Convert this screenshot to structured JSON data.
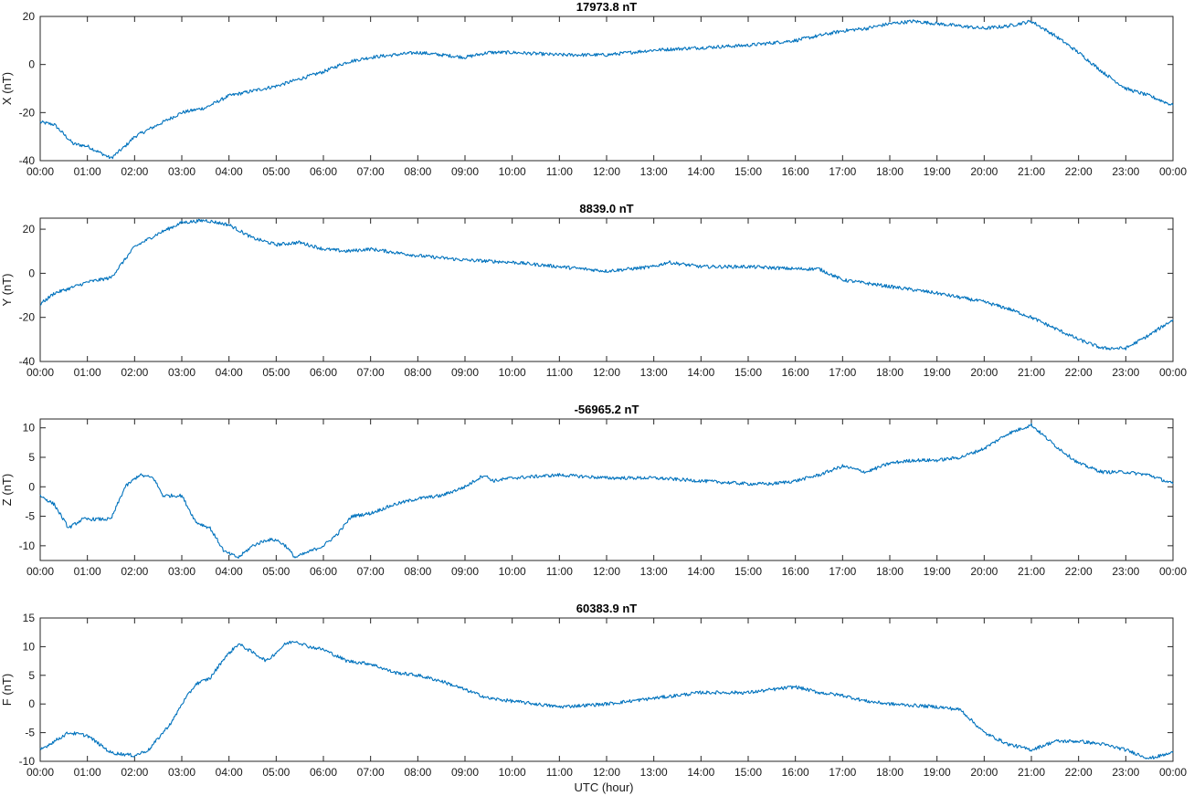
{
  "figure": {
    "xlabel": "UTC (hour)",
    "line_color": "#0072BD"
  },
  "chart_data": [
    {
      "type": "line",
      "title": "17973.8 nT",
      "ylabel": "X (nT)",
      "xlabel": "",
      "xlim": [
        0,
        24
      ],
      "ylim": [
        -40,
        20
      ],
      "xticks": [
        "00:00",
        "01:00",
        "02:00",
        "03:00",
        "04:00",
        "05:00",
        "06:00",
        "07:00",
        "08:00",
        "09:00",
        "10:00",
        "11:00",
        "12:00",
        "13:00",
        "14:00",
        "15:00",
        "16:00",
        "17:00",
        "18:00",
        "19:00",
        "20:00",
        "21:00",
        "22:00",
        "23:00",
        "00:00"
      ],
      "yticks": [
        -40,
        -20,
        0,
        20
      ],
      "grid": false,
      "series": [
        {
          "x": [
            0,
            0.3,
            0.5,
            0.7,
            1.0,
            1.2,
            1.5,
            1.8,
            2.0,
            2.5,
            3.0,
            3.5,
            4.0,
            4.5,
            5.0,
            5.5,
            6.0,
            6.5,
            7.0,
            7.5,
            8.0,
            8.5,
            9.0,
            9.5,
            10.0,
            11.0,
            12.0,
            13.0,
            14.0,
            15.0,
            16.0,
            16.5,
            17.0,
            17.5,
            18.0,
            18.5,
            19.0,
            19.5,
            20.0,
            20.5,
            21.0,
            21.5,
            22.0,
            22.5,
            23.0,
            23.5,
            24.0
          ],
          "values": [
            -24,
            -25,
            -29,
            -33,
            -34,
            -36,
            -39,
            -34,
            -30,
            -25,
            -20,
            -18,
            -13,
            -11,
            -9,
            -6,
            -3,
            1,
            3,
            4,
            5,
            4,
            3,
            5,
            5,
            4,
            4,
            6,
            7,
            8,
            10,
            12,
            14,
            15,
            17,
            18,
            17,
            16,
            15,
            16,
            18,
            12,
            5,
            -3,
            -10,
            -13,
            -17
          ]
        }
      ]
    },
    {
      "type": "line",
      "title": "8839.0 nT",
      "ylabel": "Y (nT)",
      "xlabel": "",
      "xlim": [
        0,
        24
      ],
      "ylim": [
        -40,
        25
      ],
      "xticks": [
        "00:00",
        "01:00",
        "02:00",
        "03:00",
        "04:00",
        "05:00",
        "06:00",
        "07:00",
        "08:00",
        "09:00",
        "10:00",
        "11:00",
        "12:00",
        "13:00",
        "14:00",
        "15:00",
        "16:00",
        "17:00",
        "18:00",
        "19:00",
        "20:00",
        "21:00",
        "22:00",
        "23:00",
        "00:00"
      ],
      "yticks": [
        -40,
        -20,
        0,
        20
      ],
      "grid": false,
      "series": [
        {
          "x": [
            0,
            0.3,
            0.6,
            1.0,
            1.5,
            2.0,
            2.5,
            3.0,
            3.5,
            4.0,
            4.5,
            5.0,
            5.5,
            6.0,
            6.5,
            7.0,
            8.0,
            9.0,
            10.0,
            11.0,
            12.0,
            13.0,
            13.3,
            14.0,
            15.0,
            16.0,
            16.5,
            17.0,
            18.0,
            19.0,
            19.5,
            20.0,
            20.5,
            21.0,
            21.5,
            22.0,
            22.5,
            23.0,
            23.5,
            24.0
          ],
          "values": [
            -14,
            -9,
            -7,
            -4,
            -2,
            12,
            18,
            23,
            24,
            22,
            16,
            13,
            14,
            11,
            10,
            11,
            8,
            6,
            5,
            3,
            1,
            3,
            5,
            3,
            3,
            2,
            2,
            -3,
            -6,
            -9,
            -11,
            -13,
            -16,
            -20,
            -25,
            -30,
            -34,
            -34,
            -28,
            -21
          ]
        }
      ]
    },
    {
      "type": "line",
      "title": "-56965.2 nT",
      "ylabel": "Z (nT)",
      "xlabel": "",
      "xlim": [
        0,
        24
      ],
      "ylim": [
        -12.5,
        11.5
      ],
      "xticks": [
        "00:00",
        "01:00",
        "02:00",
        "03:00",
        "04:00",
        "05:00",
        "06:00",
        "07:00",
        "08:00",
        "09:00",
        "10:00",
        "11:00",
        "12:00",
        "13:00",
        "14:00",
        "15:00",
        "16:00",
        "17:00",
        "18:00",
        "19:00",
        "20:00",
        "21:00",
        "22:00",
        "23:00",
        "00:00"
      ],
      "yticks": [
        -10,
        -5,
        0,
        5,
        10
      ],
      "grid": false,
      "series": [
        {
          "x": [
            0,
            0.3,
            0.6,
            0.9,
            1.2,
            1.5,
            1.8,
            2.1,
            2.4,
            2.6,
            2.8,
            3.0,
            3.3,
            3.6,
            3.9,
            4.2,
            4.5,
            4.8,
            5.0,
            5.2,
            5.4,
            5.7,
            6.0,
            6.3,
            6.6,
            7.0,
            7.5,
            8.0,
            8.5,
            9.0,
            9.4,
            9.6,
            10.0,
            11.0,
            12.0,
            12.5,
            13.0,
            14.0,
            15.0,
            15.5,
            16.0,
            16.5,
            17.0,
            17.5,
            18.0,
            18.5,
            19.0,
            19.5,
            20.0,
            20.5,
            21.0,
            21.5,
            22.0,
            22.5,
            23.0,
            23.5,
            24.0
          ],
          "values": [
            -1.5,
            -3,
            -7,
            -5.5,
            -5.5,
            -5.5,
            0,
            2,
            1.5,
            -1.5,
            -1.5,
            -1.5,
            -6,
            -7,
            -11,
            -12,
            -10,
            -9,
            -9,
            -10,
            -12,
            -11,
            -10,
            -8,
            -5,
            -4.5,
            -3,
            -2,
            -1.5,
            0,
            2,
            1,
            1.5,
            2,
            1.5,
            1.5,
            1.5,
            1,
            0.5,
            0.5,
            1,
            2,
            3.5,
            2.5,
            4,
            4.5,
            4.5,
            5,
            6.5,
            9,
            10.5,
            7,
            4,
            2.5,
            2.5,
            2,
            0.5
          ]
        }
      ]
    },
    {
      "type": "line",
      "title": "60383.9 nT",
      "ylabel": "F (nT)",
      "xlabel": "UTC (hour)",
      "xlim": [
        0,
        24
      ],
      "ylim": [
        -10,
        15
      ],
      "xticks": [
        "00:00",
        "01:00",
        "02:00",
        "03:00",
        "04:00",
        "05:00",
        "06:00",
        "07:00",
        "08:00",
        "09:00",
        "10:00",
        "11:00",
        "12:00",
        "13:00",
        "14:00",
        "15:00",
        "16:00",
        "17:00",
        "18:00",
        "19:00",
        "20:00",
        "21:00",
        "22:00",
        "23:00",
        "00:00"
      ],
      "yticks": [
        -10,
        -5,
        0,
        5,
        10,
        15
      ],
      "grid": false,
      "series": [
        {
          "x": [
            0,
            0.3,
            0.6,
            1.0,
            1.5,
            2.0,
            2.3,
            2.6,
            2.8,
            3.0,
            3.3,
            3.6,
            3.9,
            4.2,
            4.5,
            4.8,
            5.0,
            5.2,
            5.4,
            5.7,
            6.0,
            6.5,
            7.0,
            7.5,
            8.0,
            8.5,
            9.0,
            9.5,
            10.0,
            11.0,
            12.0,
            13.0,
            14.0,
            15.0,
            16.0,
            16.5,
            17.0,
            17.5,
            18.0,
            19.0,
            19.5,
            20.0,
            20.5,
            21.0,
            21.5,
            22.0,
            22.5,
            23.0,
            23.5,
            24.0
          ],
          "values": [
            -8,
            -6.5,
            -5,
            -5.5,
            -8.5,
            -9,
            -8,
            -5,
            -3,
            0,
            3.5,
            4.5,
            8,
            10.5,
            9,
            7.5,
            9,
            10.5,
            11,
            10,
            9.5,
            7.5,
            7,
            5.5,
            5,
            4,
            2.5,
            1,
            0.5,
            -0.5,
            0,
            1,
            2,
            2,
            3,
            2,
            1.5,
            0.5,
            0,
            -0.5,
            -1,
            -5,
            -7,
            -8,
            -6.5,
            -6.5,
            -7,
            -8,
            -9.5,
            -8.5
          ]
        }
      ]
    }
  ]
}
